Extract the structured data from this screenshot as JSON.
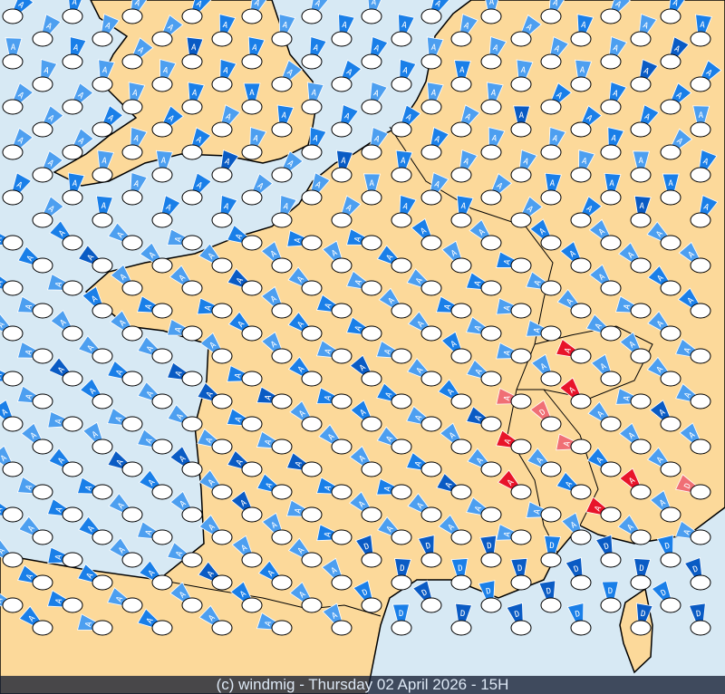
{
  "footer": {
    "text": "(c) windmig - Thursday 02 April 2026 - 15H"
  },
  "colors": {
    "sea": "#d7e9f4",
    "land": "#fcd99a",
    "border": "#000000",
    "arrow_light": "#4d9ff0",
    "arrow_mid": "#1a7fe8",
    "arrow_dark": "#0a5bc4",
    "arrow_pink": "#f06f75",
    "arrow_red": "#e8142a",
    "cloud": "#ffffff"
  },
  "legend_letters": [
    "A",
    "AA",
    "D",
    "DD"
  ]
}
